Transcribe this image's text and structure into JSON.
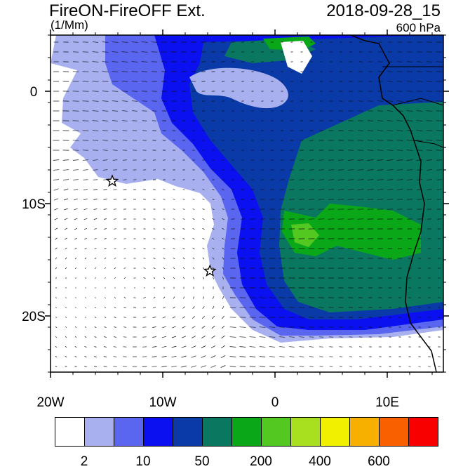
{
  "header": {
    "title_left": "FireON-FireOFF Ext.",
    "units": "(1/Mm)",
    "title_right": "2018-09-28_15",
    "level": "600 hPa"
  },
  "map": {
    "lon_range": [
      -20,
      15
    ],
    "lat_range": [
      -25,
      5
    ],
    "lon_ticks": [
      {
        "value": -20,
        "label": "20W"
      },
      {
        "value": -10,
        "label": "10W"
      },
      {
        "value": 0,
        "label": "0"
      },
      {
        "value": 10,
        "label": "10E"
      }
    ],
    "lat_ticks": [
      {
        "value": 0,
        "label": "0"
      },
      {
        "value": -10,
        "label": "10S"
      },
      {
        "value": -20,
        "label": "20S"
      }
    ],
    "markers": [
      {
        "type": "star",
        "lon": -14.5,
        "lat": -8.0
      },
      {
        "type": "star",
        "lon": -5.8,
        "lat": -16.0
      }
    ]
  },
  "colorbar": {
    "colors": [
      "#ffffff",
      "#a8b0f0",
      "#5a66f0",
      "#0a10f0",
      "#0a3aa8",
      "#0a7860",
      "#0aa818",
      "#52c820",
      "#a8e020",
      "#f0f000",
      "#f8b000",
      "#f86000",
      "#f80000"
    ],
    "labels": [
      {
        "after_box": 1,
        "text": "2"
      },
      {
        "after_box": 3,
        "text": "10"
      },
      {
        "after_box": 5,
        "text": "50"
      },
      {
        "after_box": 7,
        "text": "200"
      },
      {
        "after_box": 9,
        "text": "400"
      },
      {
        "after_box": 11,
        "text": "600"
      }
    ]
  }
}
